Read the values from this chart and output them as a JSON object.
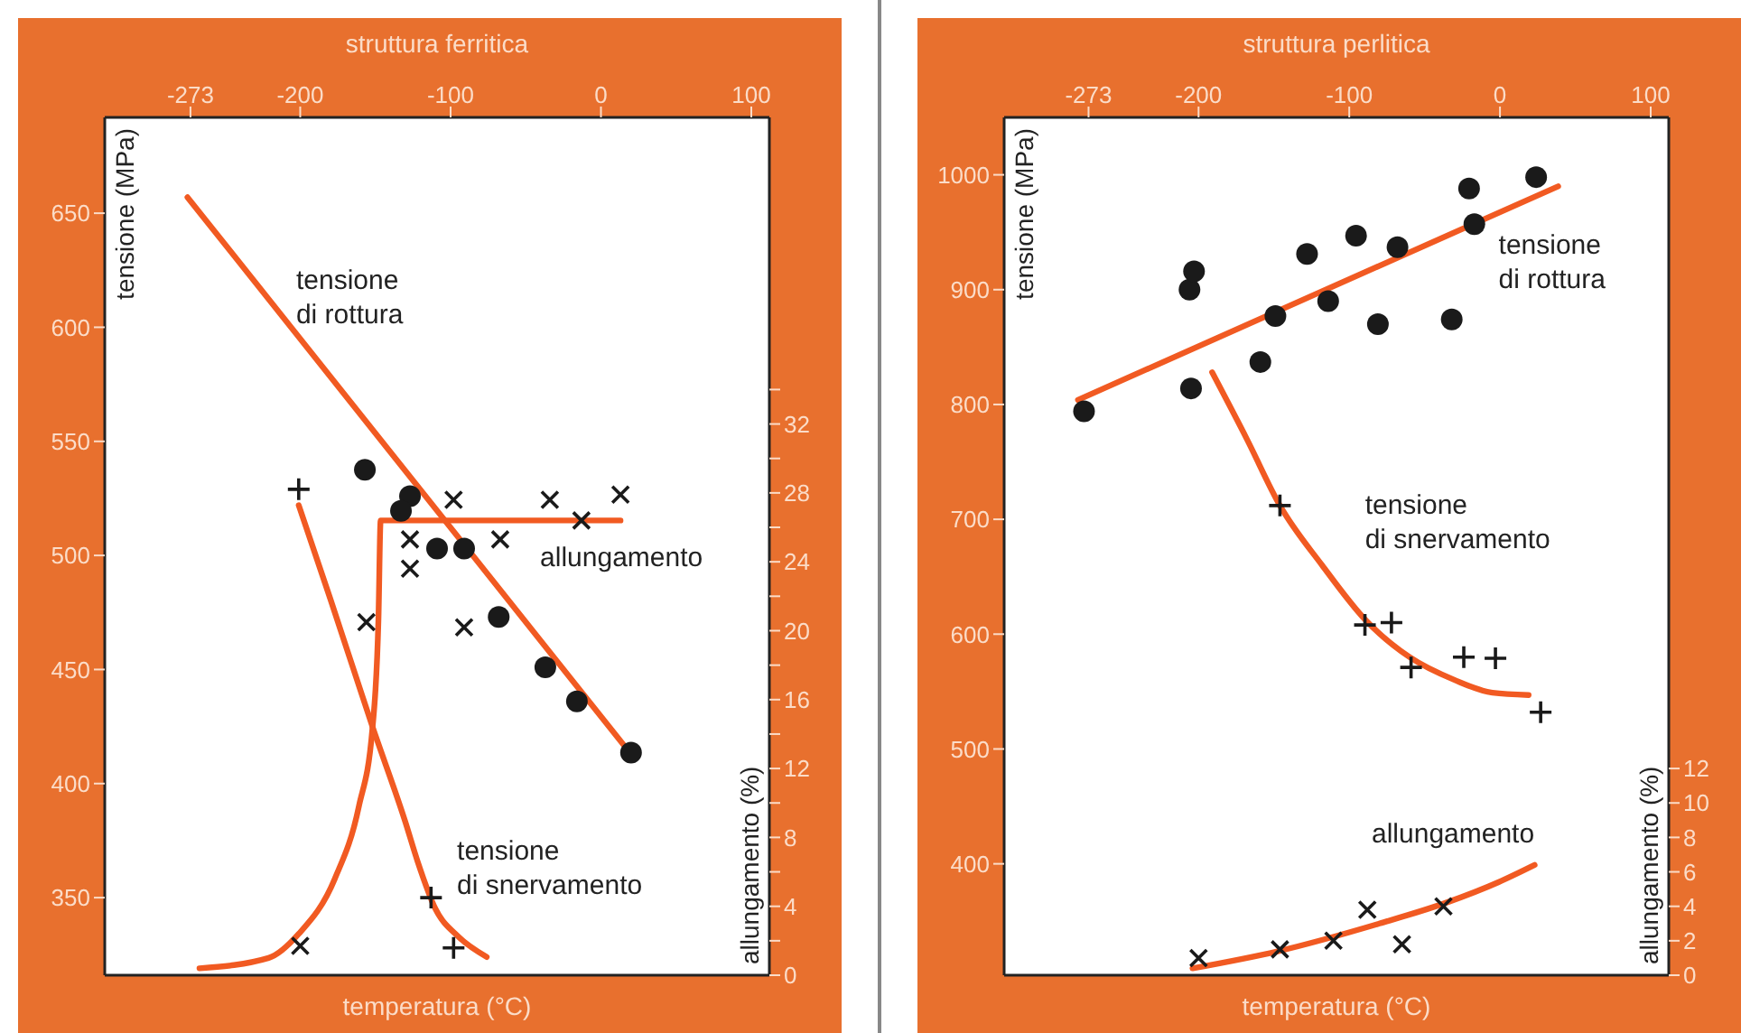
{
  "chart_data": [
    {
      "type": "scatter",
      "title": "struttura ferritica",
      "xlabel": "temperatura (°C)",
      "ylabel": "tensione (MPa)",
      "y2label": "allungamento (%)",
      "xlim": [
        -330,
        112
      ],
      "xticks": [
        -273,
        -200,
        -100,
        0,
        100
      ],
      "ylim": [
        316,
        692
      ],
      "yticks": [
        350,
        400,
        450,
        500,
        550,
        600,
        650
      ],
      "y2lim": [
        0,
        49.8
      ],
      "y2ticks": [
        0,
        {
          "value": 2,
          "label": null
        },
        4,
        {
          "value": 6,
          "label": null
        },
        8,
        {
          "value": 10,
          "label": null
        },
        12,
        {
          "value": 14,
          "label": null
        },
        16,
        {
          "value": 18,
          "label": null
        },
        20,
        {
          "value": 22,
          "label": null
        },
        24,
        {
          "value": 26,
          "label": null
        },
        28,
        {
          "value": 30,
          "label": null
        },
        32,
        {
          "value": 34,
          "label": null
        }
      ],
      "series": [
        {
          "marker": "circle",
          "color": "#1a1a1a",
          "x": [
            -157,
            -127,
            -133,
            -109,
            -91,
            -68,
            -37,
            -16,
            20
          ],
          "values": [
            537.5,
            526,
            519.5,
            503,
            503,
            473,
            451,
            436,
            413.6
          ]
        },
        {
          "type": "line",
          "marker": "none",
          "color": "#f15a22",
          "x": [
            -275,
            15
          ],
          "values": [
            657,
            417
          ]
        },
        {
          "marker": "plus",
          "color": "#1a1a1a",
          "x": [
            -201,
            -113,
            -98
          ],
          "values": [
            529,
            350,
            328
          ]
        },
        {
          "type": "line",
          "marker": "none",
          "color": "#f15a22",
          "x": [
            -201,
            -180,
            -152,
            -130,
            -122,
            -110,
            -95,
            -76
          ],
          "values": [
            522,
            481,
            425,
            383,
            366,
            345,
            333,
            324
          ]
        },
        {
          "marker": "cross",
          "axis": "y2",
          "color": "#1a1a1a",
          "x": [
            -98,
            -34,
            13,
            -13,
            -127,
            -67,
            -127,
            -156,
            -91,
            -200
          ],
          "values": [
            27.6,
            27.6,
            27.9,
            26.4,
            25.3,
            25.3,
            23.6,
            20.5,
            20.2,
            1.7
          ]
        },
        {
          "type": "line",
          "marker": "none",
          "axis": "y2",
          "color": "#f15a22",
          "x": [
            -267,
            -221,
            -201,
            -177,
            -161,
            -152,
            -148,
            -146.5,
            13
          ],
          "values": [
            0.4,
            1,
            2.4,
            5.6,
            9.8,
            14.3,
            20.6,
            26.4,
            26.4
          ]
        }
      ],
      "annotations": [
        "tensione\ndi rottura",
        "allungamento",
        "tensione\ndi snervamento"
      ]
    },
    {
      "type": "scatter",
      "title": "struttura perlitica",
      "xlabel": "temperatura (°C)",
      "ylabel": "tensione (MPa)",
      "y2label": "allungamento (%)",
      "xlim": [
        -329,
        112
      ],
      "xticks": [
        -273,
        -200,
        -100,
        0,
        100
      ],
      "ylim": [
        303,
        1050
      ],
      "yticks": [
        400,
        500,
        600,
        700,
        800,
        900,
        1000
      ],
      "y2lim": [
        0,
        49.8
      ],
      "y2ticks": [
        0,
        2,
        4,
        6,
        8,
        10,
        12
      ],
      "series": [
        {
          "marker": "circle",
          "color": "#1a1a1a",
          "x": [
            -276,
            -205,
            -206,
            -203,
            -159,
            -149,
            -128,
            -114,
            -95.5,
            -81,
            -68,
            -32,
            -20.5,
            -17,
            24
          ],
          "values": [
            794,
            814,
            900,
            916,
            837,
            877,
            931,
            890,
            947,
            870,
            937,
            874,
            988,
            957,
            998
          ]
        },
        {
          "type": "line",
          "marker": "none",
          "color": "#f15a22",
          "x": [
            -280,
            38.6
          ],
          "values": [
            804,
            990
          ]
        },
        {
          "marker": "plus",
          "color": "#1a1a1a",
          "x": [
            -146,
            -89.6,
            -72,
            -59,
            -24,
            -3,
            27
          ],
          "values": [
            712,
            608,
            610,
            571,
            580,
            579,
            532
          ]
        },
        {
          "type": "line",
          "marker": "none",
          "color": "#f15a22",
          "x": [
            -191,
            -168,
            -146,
            -118,
            -89,
            -60,
            -30,
            -5,
            19
          ],
          "values": [
            828,
            770,
            712,
            660,
            612,
            580,
            560,
            549,
            547
          ]
        },
        {
          "marker": "cross",
          "axis": "y2",
          "color": "#1a1a1a",
          "x": [
            -200,
            -146,
            -110.5,
            -88,
            -65,
            -37.5
          ],
          "values": [
            1,
            1.5,
            2,
            3.8,
            1.8,
            4
          ]
        },
        {
          "type": "line",
          "marker": "none",
          "axis": "y2",
          "color": "#f15a22",
          "x": [
            -204,
            -147,
            -80,
            -36,
            -1,
            23
          ],
          "values": [
            0.4,
            1.4,
            3,
            4.2,
            5.4,
            6.4
          ]
        }
      ],
      "annotations": [
        "tensione\ndi rottura",
        "tensione\ndi snervamento",
        "allungamento"
      ]
    }
  ]
}
